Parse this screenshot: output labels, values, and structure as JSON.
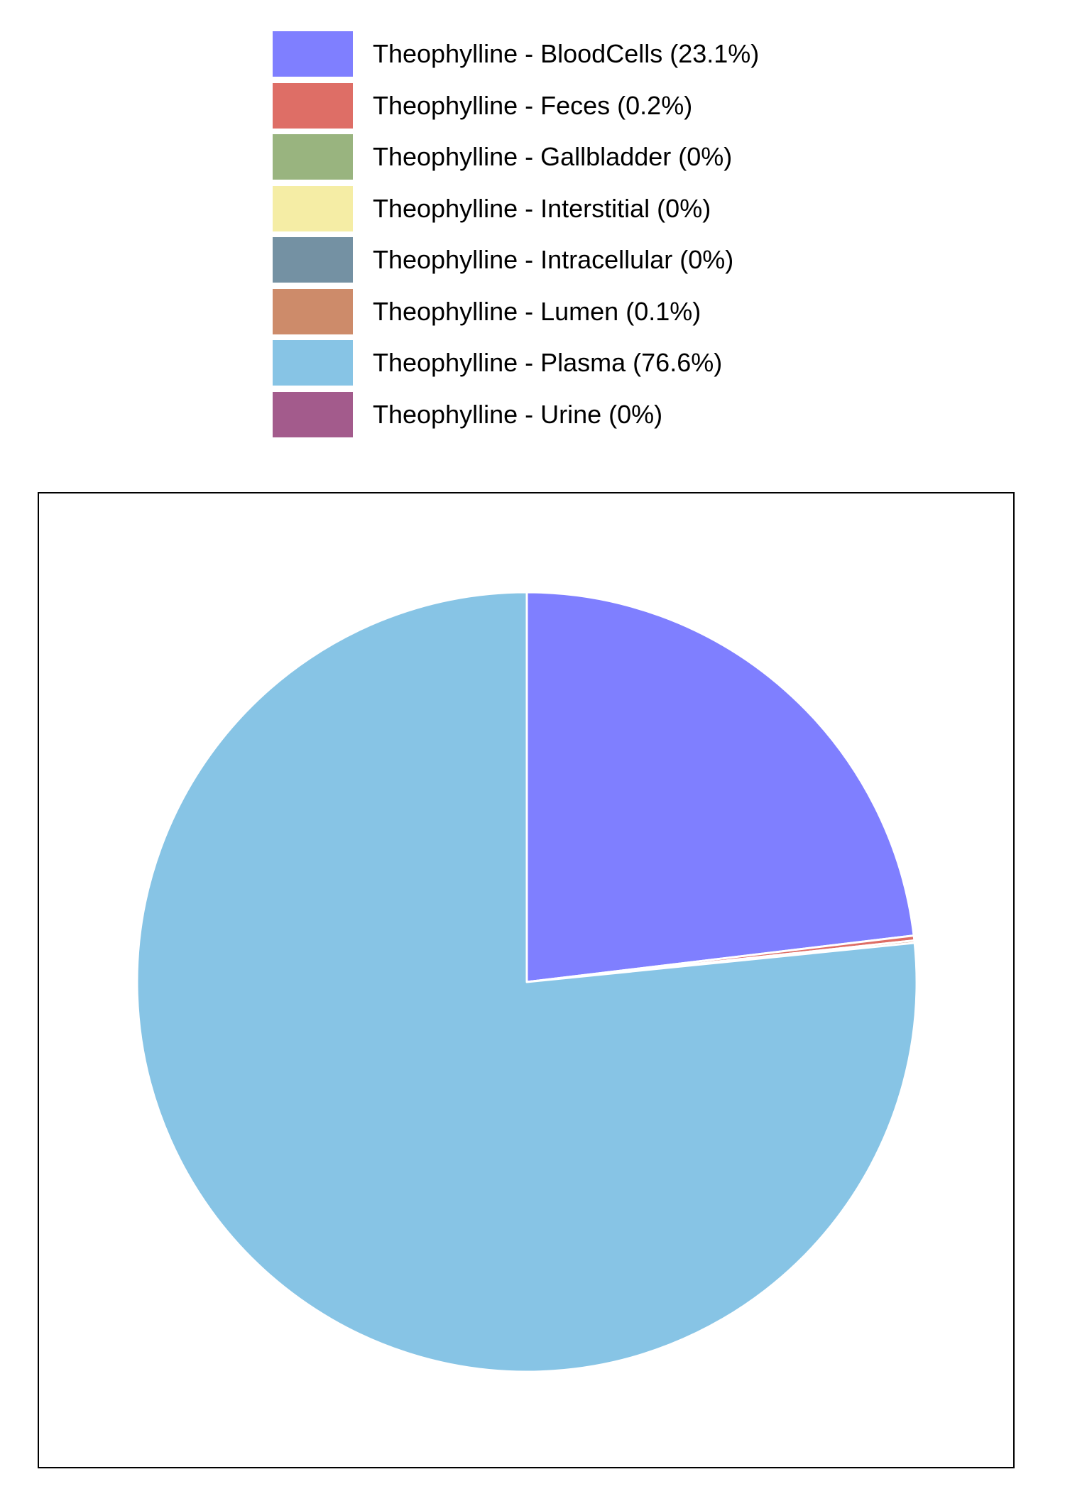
{
  "chart_data": {
    "type": "pie",
    "title": "",
    "start": "top",
    "direction": "clockwise",
    "legend_position": "top",
    "grid": false,
    "slices": [
      {
        "label": "Theophylline - BloodCells (23.1%)",
        "value": 23.1,
        "color": "#7f7fff"
      },
      {
        "label": "Theophylline - Feces (0.2%)",
        "value": 0.2,
        "color": "#de6e66"
      },
      {
        "label": "Theophylline - Gallbladder (0%)",
        "value": 0,
        "color": "#99b47f"
      },
      {
        "label": "Theophylline - Interstitial (0%)",
        "value": 0,
        "color": "#f5eda5"
      },
      {
        "label": "Theophylline - Intracellular (0%)",
        "value": 0,
        "color": "#7491a3"
      },
      {
        "label": "Theophylline - Lumen (0.1%)",
        "value": 0.1,
        "color": "#cd8b6a"
      },
      {
        "label": "Theophylline - Plasma (76.6%)",
        "value": 76.6,
        "color": "#87c4e5"
      },
      {
        "label": "Theophylline - Urine (0%)",
        "value": 0,
        "color": "#a35b8c"
      }
    ]
  }
}
